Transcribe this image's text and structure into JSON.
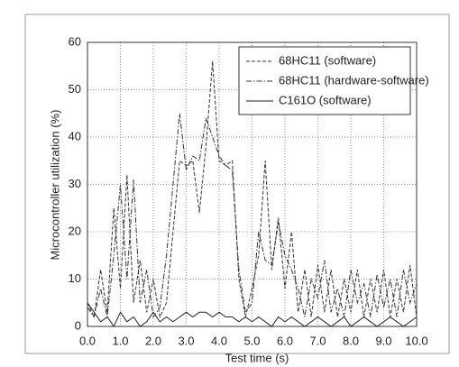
{
  "chart_data": {
    "type": "line",
    "xlabel": "Test time (s)",
    "ylabel": "Microcontroller utilization (%)",
    "x": [
      0.0,
      0.2,
      0.4,
      0.6,
      0.8,
      1.0,
      1.2,
      1.4,
      1.6,
      1.8,
      2.0,
      2.2,
      2.4,
      2.6,
      2.8,
      3.0,
      3.2,
      3.4,
      3.6,
      3.8,
      4.0,
      4.2,
      4.4,
      4.6,
      4.8,
      5.0,
      5.2,
      5.4,
      5.6,
      5.8,
      6.0,
      6.2,
      6.4,
      6.6,
      6.8,
      7.0,
      7.2,
      7.4,
      7.6,
      7.8,
      8.0,
      8.2,
      8.4,
      8.6,
      8.8,
      9.0,
      9.2,
      9.4,
      9.6,
      9.8,
      10.0
    ],
    "series": [
      {
        "name": "68HC11 (software)",
        "color": "#333333",
        "dash": "dashed",
        "values": [
          5,
          2,
          12,
          3,
          25,
          8,
          32,
          5,
          14,
          3,
          10,
          2,
          5,
          20,
          35,
          34,
          35,
          24,
          38,
          56,
          35,
          34,
          35,
          10,
          2,
          8,
          15,
          35,
          12,
          23,
          8,
          20,
          3,
          12,
          2,
          13,
          3,
          12,
          2,
          10,
          3,
          12,
          2,
          10,
          3,
          12,
          2,
          10,
          3,
          13,
          2
        ]
      },
      {
        "name": "68HC11 (hardware-software)",
        "color": "#333333",
        "dash": "dashdot",
        "values": [
          4,
          2,
          8,
          2,
          15,
          30,
          10,
          31,
          5,
          12,
          2,
          4,
          15,
          30,
          45,
          33,
          36,
          35,
          44,
          40,
          36,
          34,
          33,
          12,
          3,
          5,
          20,
          14,
          13,
          22,
          15,
          12,
          8,
          2,
          10,
          6,
          14,
          3,
          8,
          2,
          12,
          5,
          9,
          2,
          11,
          4,
          10,
          2,
          12,
          5,
          9
        ]
      },
      {
        "name": "C161O (software)",
        "color": "#222222",
        "dash": "solid",
        "values": [
          5,
          3,
          1,
          2,
          0,
          3,
          1,
          2,
          0,
          1,
          3,
          1,
          2,
          1,
          2,
          3,
          2,
          3,
          3,
          2,
          3,
          2,
          2,
          1,
          2,
          1,
          2,
          1,
          0,
          2,
          1,
          2,
          1,
          0,
          1,
          2,
          1,
          0,
          1,
          2,
          0,
          1,
          2,
          1,
          0,
          1,
          2,
          1,
          0,
          1,
          2
        ]
      }
    ],
    "xlim": [
      0,
      10
    ],
    "xticks": [
      {
        "value": 0,
        "label": "0.0"
      },
      {
        "value": 1,
        "label": "1.0"
      },
      {
        "value": 2,
        "label": "2.0"
      },
      {
        "value": 3,
        "label": "3.0"
      },
      {
        "value": 4,
        "label": "4.0"
      },
      {
        "value": 5,
        "label": "5.0"
      },
      {
        "value": 6,
        "label": "6.0"
      },
      {
        "value": 7,
        "label": "7.0"
      },
      {
        "value": 8,
        "label": "8.0"
      },
      {
        "value": 9,
        "label": "9.0"
      },
      {
        "value": 10,
        "label": "10.0"
      }
    ],
    "ylim": [
      0,
      60
    ],
    "yticks": [
      0,
      10,
      20,
      30,
      40,
      50,
      60
    ],
    "grid": true,
    "legend": "upper right"
  }
}
